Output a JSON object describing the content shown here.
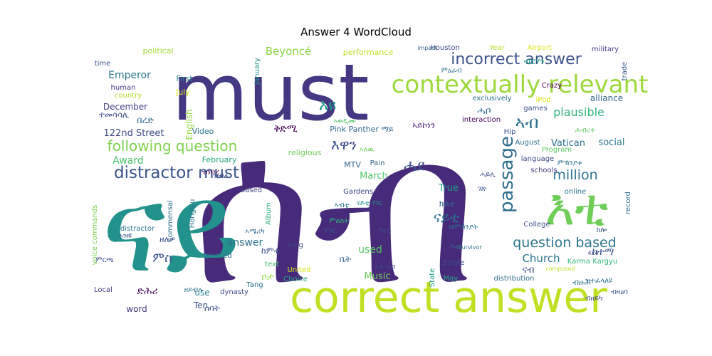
{
  "chart_data": {
    "type": "wordcloud",
    "title": "Answer 4 WordCloud",
    "words": [
      {
        "text": "ሰብ",
        "color": "#482a7a"
      },
      {
        "text": "must",
        "color": "#453781"
      },
      {
        "text": "ናይ",
        "color": "#23928c"
      },
      {
        "text": "correct answer",
        "color": "#c2df23"
      },
      {
        "text": "contextually relevant",
        "color": "#9dd93b"
      },
      {
        "text": "incorrect answer",
        "color": "#3b518b"
      },
      {
        "text": "እቲ",
        "color": "#6ece58"
      },
      {
        "text": "passage",
        "color": "#2e6e8e"
      },
      {
        "text": "distractor must",
        "color": "#3a548c"
      },
      {
        "text": "following question",
        "color": "#7fd34e"
      },
      {
        "text": "question based",
        "color": "#2c738e"
      },
      {
        "text": "million",
        "color": "#2c728e"
      },
      {
        "text": "Beyoncé",
        "color": "#8bd646"
      },
      {
        "text": "Emperor",
        "color": "#2a768e"
      },
      {
        "text": "plausible",
        "color": "#2fb47c"
      },
      {
        "text": "Church",
        "color": "#2b758e"
      },
      {
        "text": "Award",
        "color": "#4ac16d"
      },
      {
        "text": "Vatican",
        "color": "#2c718e"
      },
      {
        "text": "December",
        "color": "#414487"
      },
      {
        "text": "122nd Street",
        "color": "#3e4a89"
      },
      {
        "text": "ናይቲ",
        "color": "#2c728e"
      },
      {
        "text": "ሓደ",
        "color": "#3b528b"
      },
      {
        "text": "ምስ",
        "color": "#3b518b"
      },
      {
        "text": "answer",
        "color": "#2d708e"
      },
      {
        "text": "used",
        "color": "#56c667"
      },
      {
        "text": "March",
        "color": "#52c569"
      },
      {
        "text": "Music",
        "color": "#6ccd5a"
      },
      {
        "text": "True",
        "color": "#1f9e89"
      },
      {
        "text": "social",
        "color": "#2a788e"
      },
      {
        "text": "alliance",
        "color": "#31688e"
      },
      {
        "text": "English",
        "color": "#95d840"
      },
      {
        "text": "First",
        "color": "#26828e"
      },
      {
        "text": "July",
        "color": "#dde318"
      },
      {
        "text": "political",
        "color": "#a5db36"
      },
      {
        "text": "time",
        "color": "#3a538b"
      },
      {
        "text": "human",
        "color": "#443983"
      },
      {
        "text": "country",
        "color": "#b5de2b"
      },
      {
        "text": "Houston",
        "color": "#3e4989"
      },
      {
        "text": "Year",
        "color": "#b8de29"
      },
      {
        "text": "Airport",
        "color": "#dde318"
      },
      {
        "text": "military",
        "color": "#433d84"
      },
      {
        "text": "trade",
        "color": "#38598c"
      },
      {
        "text": "impact",
        "color": "#33628d"
      },
      {
        "text": "performance",
        "color": "#bddf26"
      },
      {
        "text": "January",
        "color": "#21918c"
      },
      {
        "text": "February",
        "color": "#22a884"
      },
      {
        "text": "Video",
        "color": "#2a788e"
      },
      {
        "text": "religious",
        "color": "#6ccd5a"
      },
      {
        "text": "Pink Panther ማይ",
        "color": "#31688e"
      },
      {
        "text": "MTV",
        "color": "#31688e"
      },
      {
        "text": "Pain",
        "color": "#33638d"
      },
      {
        "text": "Gardens",
        "color": "#404688"
      },
      {
        "text": "interaction",
        "color": "#46075a"
      },
      {
        "text": "exclusively",
        "color": "#2c738e"
      },
      {
        "text": "games",
        "color": "#3b518b"
      },
      {
        "text": "iPod",
        "color": "#dde318"
      },
      {
        "text": "Crazy",
        "color": "#440154"
      },
      {
        "text": "Hip",
        "color": "#3b528b"
      },
      {
        "text": "August",
        "color": "#2c728e"
      },
      {
        "text": "language",
        "color": "#3e4a89"
      },
      {
        "text": "Program",
        "color": "#5ec962"
      },
      {
        "text": "schools",
        "color": "#433e85"
      },
      {
        "text": "online",
        "color": "#2a788e"
      },
      {
        "text": "record",
        "color": "#2d708e"
      },
      {
        "text": "College",
        "color": "#3e4c8a"
      },
      {
        "text": "based",
        "color": "#414487"
      },
      {
        "text": "Album",
        "color": "#2db27d"
      },
      {
        "text": "commensal",
        "color": "#2c718e"
      },
      {
        "text": "distractor",
        "color": "#29798e"
      },
      {
        "text": "voice commands",
        "color": "#7ad151"
      },
      {
        "text": "Hongwu",
        "color": "#2a788e"
      },
      {
        "text": "long",
        "color": "#3f4788"
      },
      {
        "text": "granted",
        "color": "#2b748e"
      },
      {
        "text": "Two",
        "color": "#3f4788"
      },
      {
        "text": "Tang",
        "color": "#2a768e"
      },
      {
        "text": "United",
        "color": "#d8e219"
      },
      {
        "text": "Choice",
        "color": "#22a884"
      },
      {
        "text": "Single",
        "color": "#3e4a89"
      },
      {
        "text": "May",
        "color": "#21a585"
      },
      {
        "text": "distribution",
        "color": "#2e6f8e"
      },
      {
        "text": "State",
        "color": "#1fa187"
      },
      {
        "text": "Karma Kargyu",
        "color": "#31b57b"
      },
      {
        "text": "4x4",
        "color": "#404688"
      },
      {
        "text": "Survivor",
        "color": "#2d708e"
      },
      {
        "text": "composed",
        "color": "#bddf26"
      },
      {
        "text": "text",
        "color": "#40bd72"
      },
      {
        "text": "Local",
        "color": "#453882"
      },
      {
        "text": "use",
        "color": "#26828e"
      },
      {
        "text": "dynasty",
        "color": "#3f4889"
      },
      {
        "text": "Ten",
        "color": "#3b528b"
      },
      {
        "text": "word",
        "color": "#463480"
      },
      {
        "text": "ኣብ",
        "color": "#2d708e"
      },
      {
        "text": "እዩ",
        "color": "#1f9a8a"
      },
      {
        "text": "ካብ",
        "color": "#33638d"
      },
      {
        "text": "እዋን",
        "color": "#3e4a89"
      },
      {
        "text": "በረድ",
        "color": "#31688e"
      },
      {
        "text": "ቅድሚ",
        "color": "#440154"
      },
      {
        "text": "ከተማ",
        "color": "#3b528b"
      },
      {
        "text": "ሓቦ",
        "color": "#2e6e8e"
      },
      {
        "text": "ኣይኮነን",
        "color": "#482173"
      },
      {
        "text": "ዝብል",
        "color": "#3b518b"
      },
      {
        "text": "ብዙሕ",
        "color": "#2c728e"
      },
      {
        "text": "ሰባት",
        "color": "#3b528b"
      },
      {
        "text": "ድሕሪ",
        "color": "#440154"
      },
      {
        "text": "ብርሃን",
        "color": "#1fa187"
      },
      {
        "text": "ተመሳሳሊ",
        "color": "#3e4a89"
      },
      {
        "text": "ዘለዎ",
        "color": "#3b528b"
      },
      {
        "text": "ሃገር",
        "color": "#3b518b"
      },
      {
        "text": "ከሎ",
        "color": "#3b528b"
      },
      {
        "text": "ቤት",
        "color": "#33638d"
      },
      {
        "text": "ናብ",
        "color": "#3e4c8a"
      },
      {
        "text": "ዝነበረ",
        "color": "#46075a"
      },
      {
        "text": "ኣለዉ",
        "color": "#6ece58"
      },
      {
        "text": "ከምቲ",
        "color": "#3b528b"
      },
      {
        "text": "ብምኽንያት",
        "color": "#2d708e"
      },
      {
        "text": "ዝተፈላለዩ",
        "color": "#2c728e"
      },
      {
        "text": "ምርጫ",
        "color": "#3e4c8a"
      },
      {
        "text": "ብዘይካ",
        "color": "#3f4788"
      },
      {
        "text": "ኣቀዲሙ",
        "color": "#52c569"
      },
      {
        "text": "ምዕራብ",
        "color": "#2c728e"
      },
      {
        "text": "ናይቲ ሃገር",
        "color": "#21918c"
      },
      {
        "text": "ፈልጦ",
        "color": "#3b518b"
      },
      {
        "text": "ሓይሊ",
        "color": "#3b528b"
      },
      {
        "text": "ሕብረት",
        "color": "#5ec962"
      },
      {
        "text": "ኣሜሪካ",
        "color": "#31688e"
      },
      {
        "text": "ምልክት",
        "color": "#31b57b"
      },
      {
        "text": "ዘይብሉ",
        "color": "#2a788e"
      },
      {
        "text": "ቦታ",
        "color": "#8fd744"
      },
      {
        "text": "ሓደ ካብ",
        "color": "#3f4788"
      },
      {
        "text": "ገጽ",
        "color": "#3b528b"
      },
      {
        "text": "ኣብቲ",
        "color": "#2c728e"
      },
      {
        "text": "ምኽንያቱ",
        "color": "#2b758e"
      },
      {
        "text": "ኣዝዩ",
        "color": "#3e4a89"
      },
      {
        "text": "ብዛዕባ",
        "color": "#3b528b"
      },
      {
        "text": "ክልቲ",
        "color": "#33638d"
      }
    ]
  }
}
